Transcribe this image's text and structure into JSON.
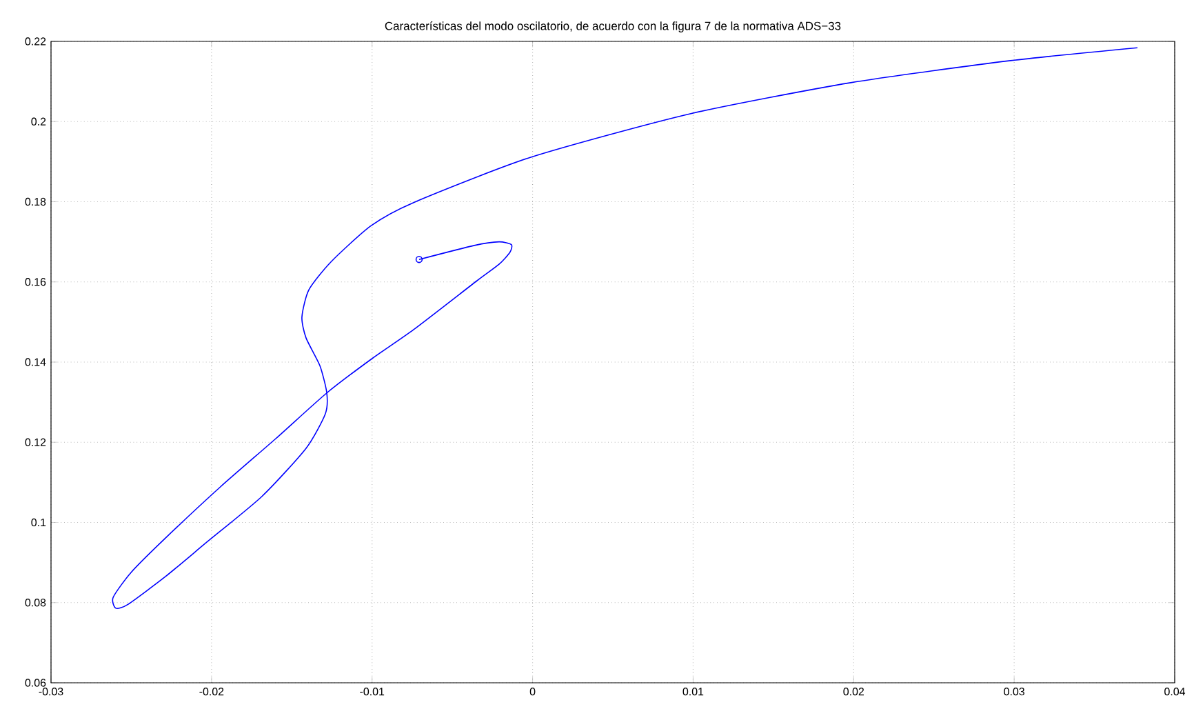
{
  "chart_data": {
    "type": "line",
    "title": "Características del modo oscilatorio, de acuerdo con la figura 7 de la normativa ADS−33",
    "series": [
      {
        "color": "#0000ff",
        "line_style": "solid",
        "x": [
          -0.00707,
          -0.00363,
          -0.00209,
          -0.00132,
          -0.00141,
          -0.00209,
          -0.00346,
          -0.00741,
          -0.00999,
          -0.01282,
          -0.016,
          -0.01944,
          -0.02287,
          -0.02502,
          -0.02613,
          -0.02596,
          -0.02519,
          -0.02287,
          -0.02029,
          -0.01686,
          -0.01411,
          -0.01291,
          -0.01282,
          -0.01325,
          -0.01411,
          -0.01437,
          -0.01394,
          -0.01256,
          -0.01007,
          -0.00741,
          -0.00011,
          0.00977,
          0.01982,
          0.02978,
          0.03768
        ],
        "values": [
          0.1656,
          0.1691,
          0.17,
          0.1693,
          0.1674,
          0.1644,
          0.1603,
          0.1481,
          0.1409,
          0.1323,
          0.1209,
          0.1089,
          0.0961,
          0.0875,
          0.0813,
          0.0786,
          0.0796,
          0.0865,
          0.0951,
          0.1065,
          0.1185,
          0.1271,
          0.1323,
          0.1391,
          0.146,
          0.1512,
          0.158,
          0.165,
          0.174,
          0.1798,
          0.1911,
          0.2019,
          0.2097,
          0.2152,
          0.2184
        ]
      },
      {
        "type": "scatter",
        "color": "#0000ff",
        "marker": "circle",
        "x": [
          -0.00707
        ],
        "values": [
          0.1656
        ]
      }
    ],
    "xlim": [
      -0.03,
      0.04
    ],
    "xticks": [
      -0.03,
      -0.02,
      -0.01,
      0,
      0.01,
      0.02,
      0.03,
      0.04
    ],
    "ylim": [
      0.06,
      0.22
    ],
    "yticks": [
      0.06,
      0.08,
      0.1,
      0.12,
      0.14,
      0.16,
      0.18,
      0.2,
      0.22
    ],
    "grid": true
  }
}
